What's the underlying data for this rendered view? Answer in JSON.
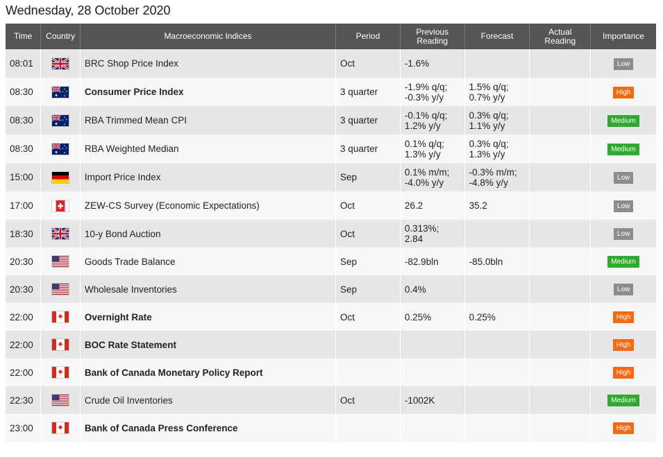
{
  "page": {
    "title": "Wednesday, 28 October 2020"
  },
  "columns": {
    "time": "Time",
    "country": "Country",
    "indices": "Macroeconomic Indices",
    "period": "Period",
    "previous": "Previous Reading",
    "forecast": "Forecast",
    "actual": "Actual Reading",
    "importance": "Importance"
  },
  "importance_colors": {
    "Low": "#8c8c8c",
    "Medium": "#2eaa2e",
    "High": "#f26a12"
  },
  "rows": [
    {
      "time": "08:01",
      "country": "uk-flag-icon",
      "name": "BRC Shop Price Index",
      "bold": false,
      "period": "Oct",
      "previous": [
        "-1.6%"
      ],
      "forecast": [],
      "actual": "",
      "importance": "Low"
    },
    {
      "time": "08:30",
      "country": "australia-flag-icon",
      "name": "Consumer Price Index",
      "bold": true,
      "period": "3 quarter",
      "previous": [
        "-1.9% q/q;",
        "-0.3% y/y"
      ],
      "forecast": [
        "1.5% q/q;",
        "0.7% y/y"
      ],
      "actual": "",
      "importance": "High"
    },
    {
      "time": "08:30",
      "country": "australia-flag-icon",
      "name": "RBA Trimmed Mean CPI",
      "bold": false,
      "period": "3 quarter",
      "previous": [
        "-0.1% q/q;",
        "1.2% y/y"
      ],
      "forecast": [
        "0.3% q/q;",
        "1.1% y/y"
      ],
      "actual": "",
      "importance": "Medium"
    },
    {
      "time": "08:30",
      "country": "australia-flag-icon",
      "name": "RBA Weighted Median",
      "bold": false,
      "period": "3 quarter",
      "previous": [
        "0.1% q/q;",
        "1.3% y/y"
      ],
      "forecast": [
        "0.3% q/q;",
        "1.3% y/y"
      ],
      "actual": "",
      "importance": "Medium"
    },
    {
      "time": "15:00",
      "country": "germany-flag-icon",
      "name": "Import Price Index",
      "bold": false,
      "period": "Sep",
      "previous": [
        "0.1% m/m;",
        "-4.0% y/y"
      ],
      "forecast": [
        "-0.3% m/m;",
        "-4.8% y/y"
      ],
      "actual": "",
      "importance": "Low"
    },
    {
      "time": "17:00",
      "country": "switzerland-flag-icon",
      "name": "ZEW-CS Survey (Economic Expectations)",
      "bold": false,
      "period": "Oct",
      "previous": [
        "26.2"
      ],
      "forecast": [
        "35.2"
      ],
      "actual": "",
      "importance": "Low"
    },
    {
      "time": "18:30",
      "country": "uk-flag-icon",
      "name": "10-y Bond Auction",
      "bold": false,
      "period": "Oct",
      "previous": [
        "0.313%;",
        "2.84"
      ],
      "forecast": [],
      "actual": "",
      "importance": "Low"
    },
    {
      "time": "20:30",
      "country": "usa-flag-icon",
      "name": "Goods Trade Balance",
      "bold": false,
      "period": "Sep",
      "previous": [
        "-82.9bln"
      ],
      "forecast": [
        "-85.0bln"
      ],
      "actual": "",
      "importance": "Medium"
    },
    {
      "time": "20:30",
      "country": "usa-flag-icon",
      "name": "Wholesale Inventories",
      "bold": false,
      "period": "Sep",
      "previous": [
        "0.4%"
      ],
      "forecast": [],
      "actual": "",
      "importance": "Low"
    },
    {
      "time": "22:00",
      "country": "canada-flag-icon",
      "name": "Overnight Rate",
      "bold": true,
      "period": "Oct",
      "previous": [
        "0.25%"
      ],
      "forecast": [
        "0.25%"
      ],
      "actual": "",
      "importance": "High"
    },
    {
      "time": "22:00",
      "country": "canada-flag-icon",
      "name": "BOC Rate Statement",
      "bold": true,
      "period": "",
      "previous": [],
      "forecast": [],
      "actual": "",
      "importance": "High"
    },
    {
      "time": "22:00",
      "country": "canada-flag-icon",
      "name": "Bank of Canada Monetary Policy Report",
      "bold": true,
      "period": "",
      "previous": [],
      "forecast": [],
      "actual": "",
      "importance": "High"
    },
    {
      "time": "22:30",
      "country": "usa-flag-icon",
      "name": "Crude Oil Inventories",
      "bold": false,
      "period": "Oct",
      "previous": [
        "-1002K"
      ],
      "forecast": [],
      "actual": "",
      "importance": "Medium"
    },
    {
      "time": "23:00",
      "country": "canada-flag-icon",
      "name": "Bank of Canada Press Conference",
      "bold": true,
      "period": "",
      "previous": [],
      "forecast": [],
      "actual": "",
      "importance": "High"
    }
  ]
}
